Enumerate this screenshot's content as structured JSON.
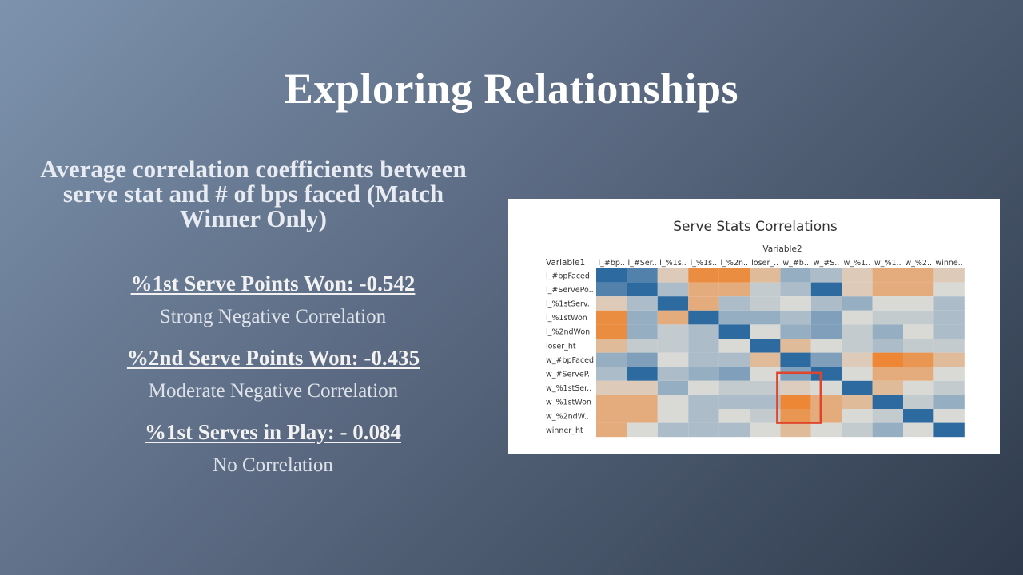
{
  "slide": {
    "title": "Exploring Relationships",
    "subtitle_lines": [
      "Average correlation coefficients between",
      "serve stat and # of  bps faced (Match",
      "Winner Only)"
    ],
    "stats": [
      {
        "heading": "%1st Serve Points Won: -0.542",
        "description": "Strong Negative Correlation"
      },
      {
        "heading": "%2nd Serve Points Won: -0.435",
        "description": "Moderate Negative Correlation"
      },
      {
        "heading": "%1st Serves in Play: - 0.084",
        "description": "No Correlation"
      }
    ]
  },
  "chart_data": {
    "type": "heatmap",
    "title": "Serve Stats Correlations",
    "xlabel": "Variable2",
    "ylabel": "Variable1",
    "x_tick_labels": [
      "l_#bp..",
      "l_#Ser..",
      "l_%1s..",
      "l_%1s..",
      "l_%2n..",
      "loser_..",
      "w_#b..",
      "w_#S..",
      "w_%1..",
      "w_%1..",
      "w_%2..",
      "winne.."
    ],
    "y_tick_labels": [
      "l_#bpFaced",
      "l_#ServePo..",
      "l_%1stServ..",
      "l_%1stWon",
      "l_%2ndWon",
      "loser_ht",
      "w_#bpFaced",
      "w_#ServeP..",
      "w_%1stSer..",
      "w_%1stWon",
      "w_%2ndW..",
      "winner_ht"
    ],
    "values": [
      [
        1.0,
        0.6,
        -0.1,
        -0.5,
        -0.5,
        -0.2,
        0.3,
        0.2,
        -0.1,
        -0.3,
        -0.3,
        -0.1
      ],
      [
        0.6,
        1.0,
        0.2,
        -0.3,
        -0.3,
        0.1,
        0.2,
        0.8,
        -0.1,
        -0.3,
        -0.3,
        0.0
      ],
      [
        -0.1,
        0.2,
        1.0,
        -0.3,
        0.2,
        0.1,
        0.0,
        0.2,
        0.3,
        0.0,
        0.0,
        0.2
      ],
      [
        -0.5,
        0.3,
        -0.3,
        1.0,
        0.3,
        0.3,
        0.2,
        0.4,
        0.0,
        0.1,
        0.1,
        0.2
      ],
      [
        -0.5,
        0.3,
        0.1,
        0.2,
        0.8,
        0.0,
        0.3,
        0.4,
        0.1,
        0.3,
        0.0,
        0.2
      ],
      [
        -0.2,
        0.1,
        0.1,
        0.2,
        0.0,
        0.9,
        -0.2,
        0.0,
        0.1,
        0.2,
        0.1,
        0.1
      ],
      [
        0.3,
        0.4,
        0.0,
        0.2,
        0.2,
        -0.2,
        1.0,
        0.4,
        -0.1,
        -0.54,
        -0.44,
        -0.2
      ],
      [
        0.2,
        0.8,
        0.2,
        0.3,
        0.4,
        0.0,
        0.4,
        1.0,
        0.0,
        -0.3,
        -0.3,
        0.0
      ],
      [
        -0.1,
        -0.1,
        0.3,
        0.0,
        0.1,
        0.1,
        -0.08,
        0.0,
        1.0,
        -0.2,
        0.0,
        0.1
      ],
      [
        -0.3,
        -0.3,
        0.0,
        0.2,
        0.2,
        0.2,
        -0.54,
        -0.3,
        -0.2,
        1.0,
        0.1,
        0.3
      ],
      [
        -0.3,
        -0.3,
        0.0,
        0.2,
        0.0,
        0.1,
        -0.44,
        -0.3,
        0.0,
        0.1,
        1.0,
        0.0
      ],
      [
        -0.3,
        0.0,
        0.2,
        0.2,
        0.2,
        0.0,
        -0.2,
        0.0,
        0.1,
        0.3,
        0.0,
        1.0
      ]
    ],
    "color_scale": {
      "negative": "#f07a1c",
      "neutral": "#d9d9d6",
      "positive": "#2c6aa0"
    },
    "highlight": {
      "color": "#e0442a",
      "rows": [
        "w_%1stSer..",
        "w_%1stWon",
        "w_%2ndW.."
      ],
      "column": "w_#b.."
    }
  }
}
